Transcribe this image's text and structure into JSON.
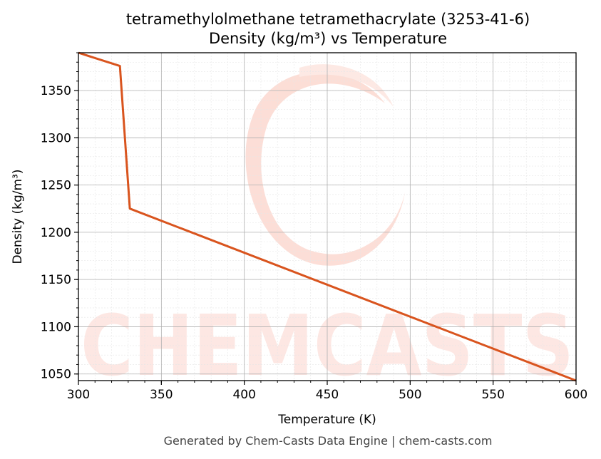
{
  "watermark_text": "CHEMCASTS",
  "footer_text": "Generated by Chem-Casts Data Engine | chem-casts.com",
  "chart_data": {
    "type": "line",
    "title": [
      "tetramethylolmethane tetramethacrylate (3253-41-6)",
      "Density (kg/m³) vs Temperature"
    ],
    "xlabel": "Temperature (K)",
    "ylabel": "Density (kg/m³)",
    "xlim": [
      300,
      600
    ],
    "ylim": [
      1043,
      1390
    ],
    "xticks": [
      300,
      350,
      400,
      450,
      500,
      550,
      600
    ],
    "yticks": [
      1050,
      1100,
      1150,
      1200,
      1250,
      1300,
      1350
    ],
    "grid": true,
    "line_color": "#d9541e",
    "series": [
      {
        "x": [
          300,
          325,
          331,
          600
        ],
        "y": [
          1390,
          1376,
          1225,
          1043
        ]
      }
    ]
  }
}
